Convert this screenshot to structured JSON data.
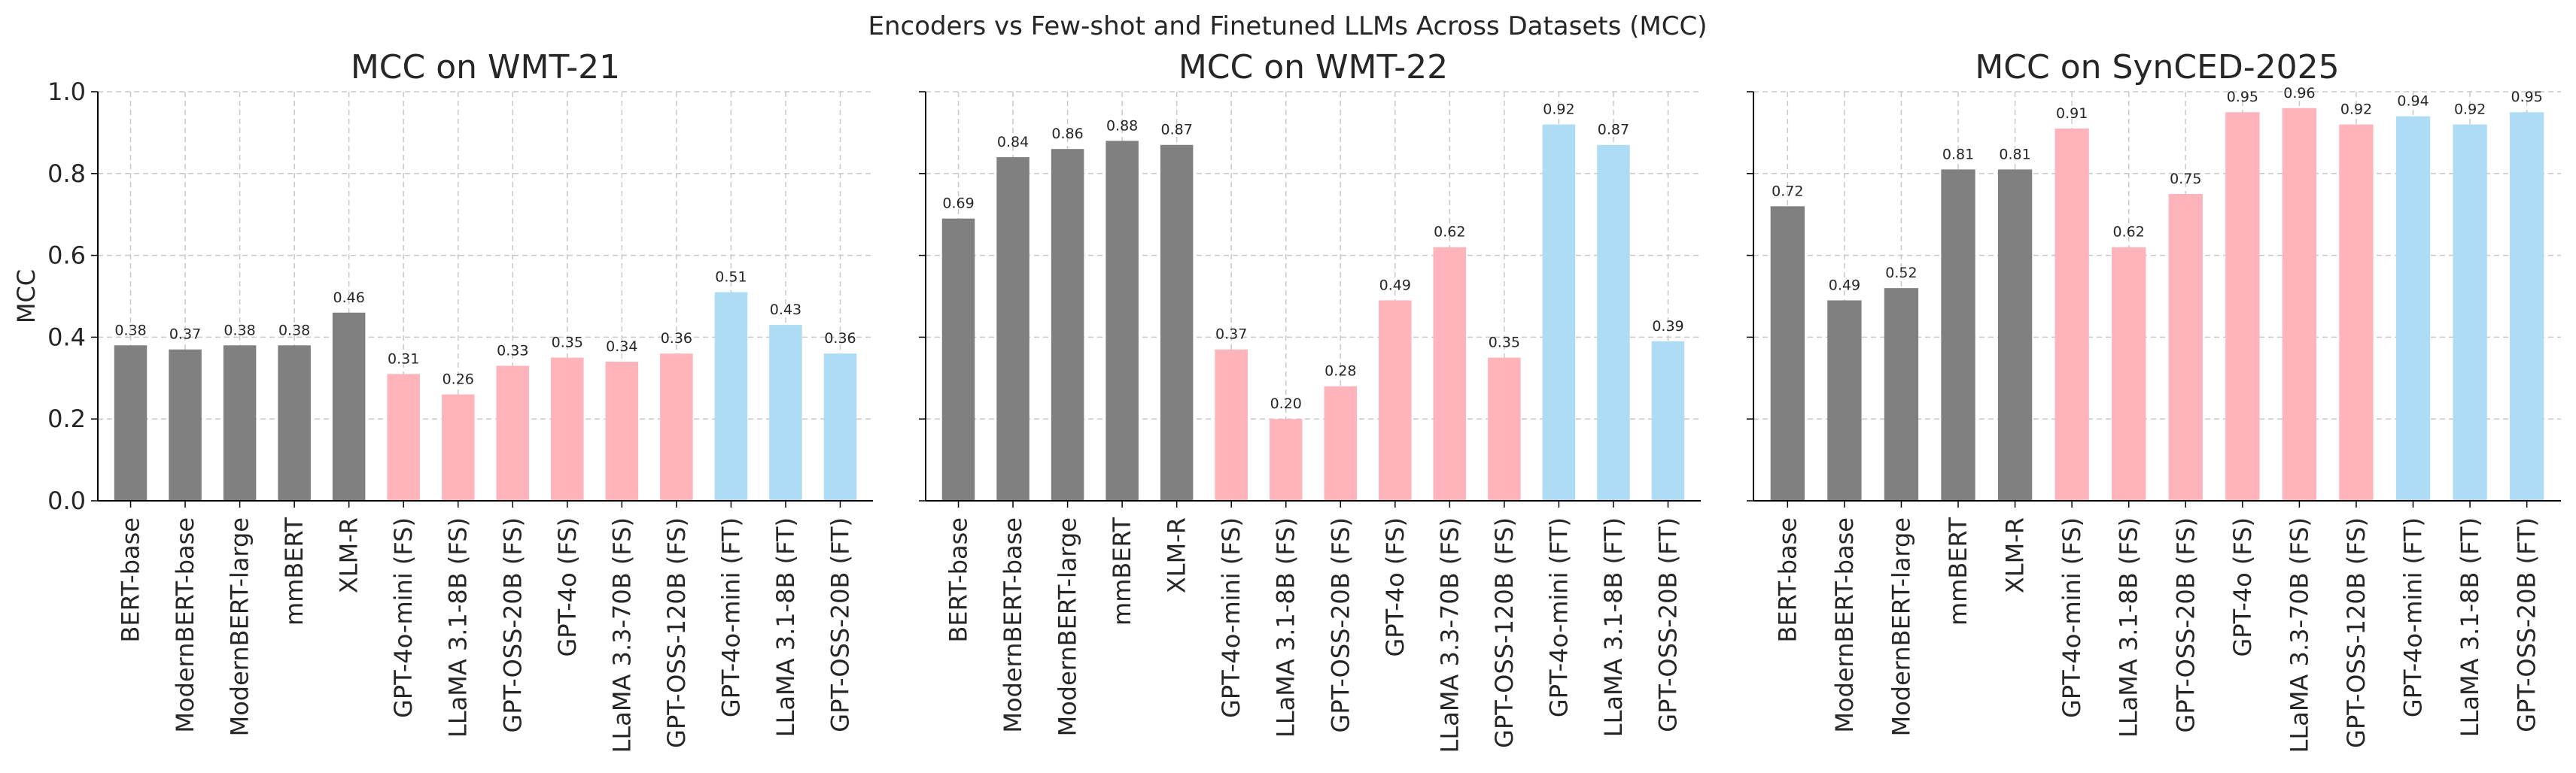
{
  "suptitle": "Encoders vs Few-shot and Finetuned LLMs Across Datasets (MCC)",
  "colors": {
    "encoder": "#808080",
    "few_shot": "#ffb3ba",
    "finetuned": "#aedcf5",
    "grid": "#c8c8c8",
    "axis": "#000000",
    "text": "#262626"
  },
  "chart_data": [
    {
      "type": "bar",
      "title": "MCC on WMT-21",
      "ylabel": "MCC",
      "ylim": [
        0,
        1.0
      ],
      "yticks": [
        "0.0",
        "0.2",
        "0.4",
        "0.6",
        "0.8",
        "1.0"
      ],
      "grid": true,
      "categories": [
        "BERT-base",
        "ModernBERT-base",
        "ModernBERT-large",
        "mmBERT",
        "XLM-R",
        "GPT-4o-mini (FS)",
        "LLaMA 3.1-8B (FS)",
        "GPT-OSS-20B (FS)",
        "GPT-4o (FS)",
        "LLaMA 3.3-70B (FS)",
        "GPT-OSS-120B (FS)",
        "GPT-4o-mini (FT)",
        "LLaMA 3.1-8B (FT)",
        "GPT-OSS-20B (FT)"
      ],
      "groups": [
        "encoder",
        "encoder",
        "encoder",
        "encoder",
        "encoder",
        "few_shot",
        "few_shot",
        "few_shot",
        "few_shot",
        "few_shot",
        "few_shot",
        "finetuned",
        "finetuned",
        "finetuned"
      ],
      "values": [
        0.38,
        0.37,
        0.38,
        0.38,
        0.46,
        0.31,
        0.26,
        0.33,
        0.35,
        0.34,
        0.36,
        0.51,
        0.43,
        0.36
      ],
      "value_labels": [
        "0.38",
        "0.37",
        "0.38",
        "0.38",
        "0.46",
        "0.31",
        "0.26",
        "0.33",
        "0.35",
        "0.34",
        "0.36",
        "0.51",
        "0.43",
        "0.36"
      ]
    },
    {
      "type": "bar",
      "title": "MCC on WMT-22",
      "ylabel": "",
      "ylim": [
        0,
        1.0
      ],
      "yticks": [],
      "grid": true,
      "categories": [
        "BERT-base",
        "ModernBERT-base",
        "ModernBERT-large",
        "mmBERT",
        "XLM-R",
        "GPT-4o-mini (FS)",
        "LLaMA 3.1-8B (FS)",
        "GPT-OSS-20B (FS)",
        "GPT-4o (FS)",
        "LLaMA 3.3-70B (FS)",
        "GPT-OSS-120B (FS)",
        "GPT-4o-mini (FT)",
        "LLaMA 3.1-8B (FT)",
        "GPT-OSS-20B (FT)"
      ],
      "groups": [
        "encoder",
        "encoder",
        "encoder",
        "encoder",
        "encoder",
        "few_shot",
        "few_shot",
        "few_shot",
        "few_shot",
        "few_shot",
        "few_shot",
        "finetuned",
        "finetuned",
        "finetuned"
      ],
      "values": [
        0.69,
        0.84,
        0.86,
        0.88,
        0.87,
        0.37,
        0.2,
        0.28,
        0.49,
        0.62,
        0.35,
        0.92,
        0.87,
        0.39
      ],
      "value_labels": [
        "0.69",
        "0.84",
        "0.86",
        "0.88",
        "0.87",
        "0.37",
        "0.20",
        "0.28",
        "0.49",
        "0.62",
        "0.35",
        "0.92",
        "0.87",
        "0.39"
      ]
    },
    {
      "type": "bar",
      "title": "MCC on SynCED-2025",
      "ylabel": "",
      "ylim": [
        0,
        1.0
      ],
      "yticks": [],
      "grid": true,
      "categories": [
        "BERT-base",
        "ModernBERT-base",
        "ModernBERT-large",
        "mmBERT",
        "XLM-R",
        "GPT-4o-mini (FS)",
        "LLaMA 3.1-8B (FS)",
        "GPT-OSS-20B (FS)",
        "GPT-4o (FS)",
        "LLaMA 3.3-70B (FS)",
        "GPT-OSS-120B (FS)",
        "GPT-4o-mini (FT)",
        "LLaMA 3.1-8B (FT)",
        "GPT-OSS-20B (FT)"
      ],
      "groups": [
        "encoder",
        "encoder",
        "encoder",
        "encoder",
        "encoder",
        "few_shot",
        "few_shot",
        "few_shot",
        "few_shot",
        "few_shot",
        "few_shot",
        "finetuned",
        "finetuned",
        "finetuned"
      ],
      "values": [
        0.72,
        0.49,
        0.52,
        0.81,
        0.81,
        0.91,
        0.62,
        0.75,
        0.95,
        0.96,
        0.92,
        0.94,
        0.92,
        0.95
      ],
      "value_labels": [
        "0.72",
        "0.49",
        "0.52",
        "0.81",
        "0.81",
        "0.91",
        "0.62",
        "0.75",
        "0.95",
        "0.96",
        "0.92",
        "0.94",
        "0.92",
        "0.95"
      ]
    }
  ]
}
